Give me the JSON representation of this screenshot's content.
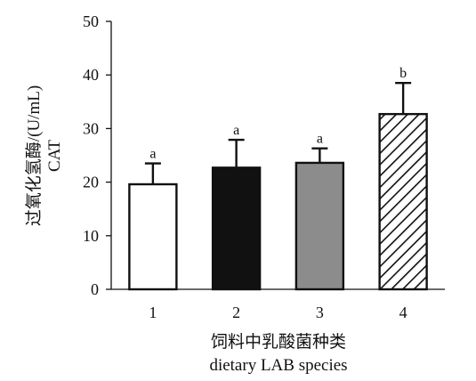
{
  "chart_data": {
    "type": "bar",
    "categories": [
      "1",
      "2",
      "3",
      "4"
    ],
    "values": [
      19.6,
      22.7,
      23.6,
      32.7
    ],
    "error_upper": [
      23.5,
      27.9,
      26.3,
      38.5
    ],
    "significance_labels": [
      "a",
      "a",
      "a",
      "b"
    ],
    "fills": [
      "white",
      "black",
      "gray",
      "hatch"
    ],
    "fill_colors": [
      "#ffffff",
      "#111111",
      "#8c8c8c",
      "#ffffff"
    ],
    "xlabel": "饲料中乳酸菌种类",
    "xlabel_en": "dietary LAB species",
    "ylabel": "过氧化氢酶/(U/mL)",
    "ylabel_en": "CAT",
    "ylim": [
      0,
      50
    ],
    "yticks": [
      "0",
      "10",
      "20",
      "30",
      "40",
      "50"
    ],
    "grid": false,
    "legend": "none"
  }
}
